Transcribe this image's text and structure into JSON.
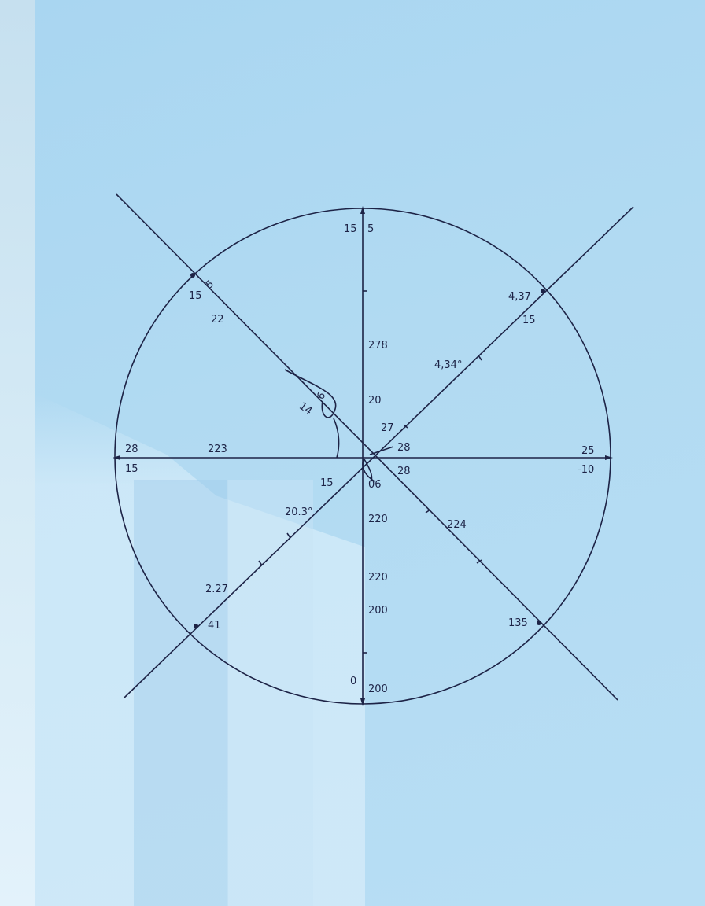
{
  "diagram": {
    "labels": {
      "top_left": "15",
      "top_right": "5",
      "ul_5": "5",
      "ul_15": "15",
      "ul_22": "22",
      "ur_437": "4,37",
      "ur_15": "15",
      "v_278": "278",
      "ur_434": "4,34°",
      "v_20": "20",
      "c_27": "27",
      "c_28a": "28",
      "left_28": "28",
      "left_15": "15",
      "h_223": "223",
      "right_25": "25",
      "right_m10": "-10",
      "c_28b": "28",
      "c_15": "15",
      "c_06": "06",
      "arc_6": "6",
      "arc_14": "14",
      "ll_203": "20.3°",
      "v_220a": "220",
      "lr_224": "224",
      "v_220b": "220",
      "ll_227": "2.27",
      "v_200a": "200",
      "ll_41": "41",
      "lr_135": "135",
      "bottom_0": "0",
      "bottom_200": "200"
    }
  }
}
